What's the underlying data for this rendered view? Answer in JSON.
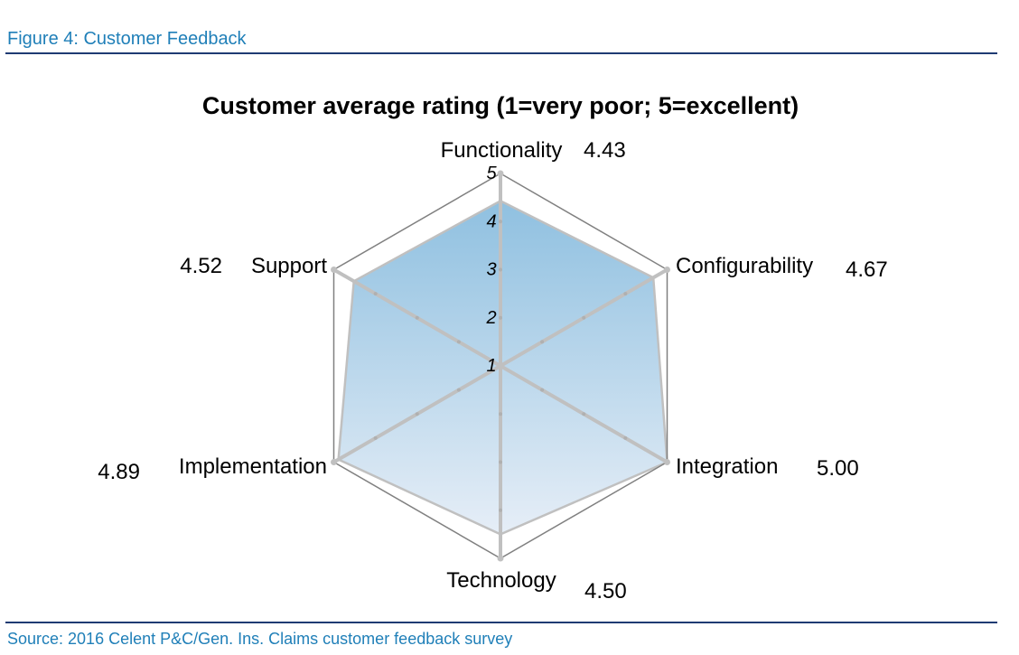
{
  "header": {
    "figure_title": "Figure 4: Customer Feedback"
  },
  "footer": {
    "source": "Source: 2016 Celent P&C/Gen. Ins. Claims customer feedback survey"
  },
  "chart_data": {
    "type": "radar",
    "title": "Customer average rating (1=very poor; 5=excellent)",
    "axes": [
      "Functionality",
      "Configurability",
      "Integration",
      "Technology",
      "Implementation",
      "Support"
    ],
    "values": [
      4.43,
      4.67,
      5.0,
      4.5,
      4.89,
      4.52
    ],
    "value_labels": [
      "4.43",
      "4.67",
      "5.00",
      "4.50",
      "4.89",
      "4.52"
    ],
    "rlim": [
      1,
      5
    ],
    "tick_labels": [
      "1",
      "2",
      "3",
      "4",
      "5"
    ],
    "fill_color_top": "#8fc0e0",
    "fill_color_bottom": "#e6eef7",
    "gridline_color": "#c0c0c0",
    "outer_frame_color": "#808080"
  }
}
